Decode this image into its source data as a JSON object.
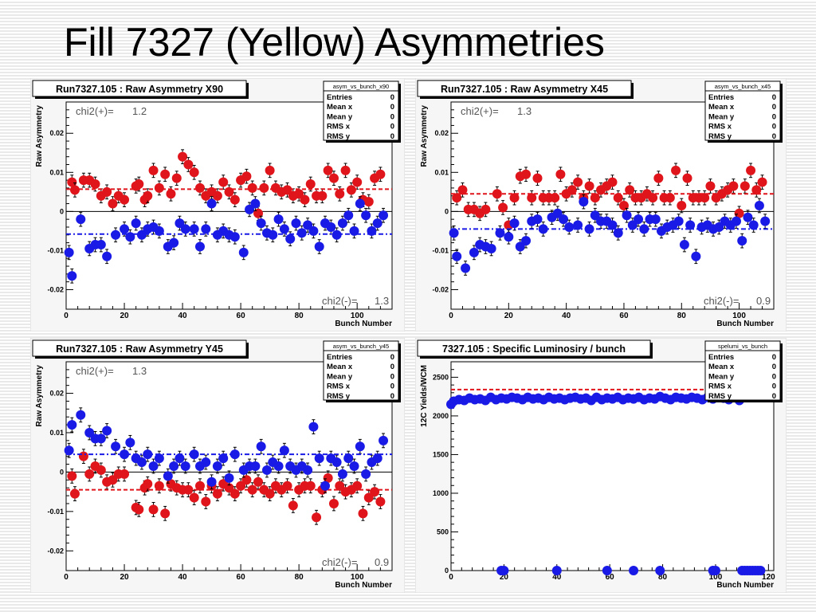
{
  "page": {
    "title": "Fill 7327 (Yellow) Asymmetries"
  },
  "colors": {
    "red": "#e0151b",
    "blue": "#1a1ae6",
    "frame": "#000000",
    "panel_bg": "#f6f6f6"
  },
  "chart_data": [
    {
      "type": "scatter",
      "title": "Run7327.105 : Raw Asymmetry X90",
      "stats_title": "asym_vs_bunch_x90",
      "stats": [
        [
          "Entries",
          "0"
        ],
        [
          "Mean x",
          "0"
        ],
        [
          "Mean y",
          "0"
        ],
        [
          "RMS x",
          "0"
        ],
        [
          "RMS y",
          "0"
        ]
      ],
      "xlabel": "Bunch Number",
      "ylabel": "Raw Asymmetry",
      "xlim": [
        0,
        112
      ],
      "ylim": [
        -0.025,
        0.028
      ],
      "xticks": [
        0,
        20,
        40,
        60,
        80,
        100
      ],
      "yticks": [
        -0.02,
        -0.01,
        0,
        0.01,
        0.02
      ],
      "ytick_labels": [
        "-0.02",
        "-0.01",
        "0",
        "0.01",
        "0.02"
      ],
      "chi2_plus_label": "chi2(+)=",
      "chi2_plus": "1.2",
      "chi2_minus_label": "chi2(-)=",
      "chi2_minus": "1.3",
      "series": [
        {
          "color": "red",
          "fit": 0.0057,
          "err": 0.0018,
          "x": [
            2,
            3,
            6,
            8,
            10,
            12,
            14,
            16,
            18,
            20,
            24,
            25,
            27,
            28,
            30,
            32,
            34,
            36,
            38,
            40,
            42,
            44,
            46,
            48,
            50,
            52,
            54,
            56,
            58,
            60,
            62,
            64,
            66,
            68,
            70,
            72,
            74,
            76,
            78,
            80,
            82,
            84,
            86,
            88,
            90,
            92,
            94,
            96,
            98,
            100,
            102,
            104,
            106,
            108
          ],
          "y": [
            0.0075,
            0.0055,
            0.008,
            0.008,
            0.007,
            0.004,
            0.005,
            0.002,
            0.004,
            0.003,
            0.0065,
            0.007,
            0.003,
            0.004,
            0.0105,
            0.006,
            0.0095,
            0.0045,
            0.0085,
            0.014,
            0.012,
            0.01,
            0.006,
            0.004,
            0.005,
            0.004,
            0.0075,
            0.005,
            0.003,
            0.008,
            0.009,
            0.006,
            -0.0005,
            0.006,
            0.0105,
            0.006,
            0.005,
            0.0055,
            0.004,
            0.0045,
            0.003,
            0.007,
            0.004,
            0.004,
            0.0105,
            0.0085,
            0.0045,
            0.0105,
            0.0055,
            0.0075,
            0.003,
            0.0025,
            0.0085,
            0.0095
          ]
        },
        {
          "color": "blue",
          "fit": -0.0058,
          "err": 0.0018,
          "x": [
            1,
            2,
            5,
            8,
            10,
            12,
            14,
            17,
            20,
            22,
            24,
            26,
            28,
            30,
            32,
            35,
            37,
            39,
            41,
            44,
            46,
            48,
            50,
            52,
            54,
            56,
            58,
            61,
            63,
            65,
            67,
            69,
            71,
            73,
            75,
            77,
            79,
            81,
            83,
            85,
            87,
            89,
            91,
            93,
            95,
            97,
            99,
            101,
            103,
            105,
            107,
            109
          ],
          "y": [
            -0.0105,
            -0.0165,
            -0.002,
            -0.0095,
            -0.0085,
            -0.0085,
            -0.0115,
            -0.006,
            -0.0045,
            -0.0065,
            -0.003,
            -0.006,
            -0.0045,
            -0.004,
            -0.005,
            -0.009,
            -0.008,
            -0.003,
            -0.0045,
            -0.0045,
            -0.009,
            -0.0045,
            0.002,
            -0.006,
            -0.005,
            -0.006,
            -0.0065,
            -0.0105,
            0.0005,
            0.002,
            -0.003,
            -0.0055,
            -0.006,
            -0.002,
            -0.0045,
            -0.007,
            -0.003,
            -0.0055,
            -0.0035,
            -0.005,
            -0.009,
            -0.003,
            -0.004,
            -0.006,
            -0.003,
            -0.001,
            -0.005,
            0.002,
            -0.001,
            -0.005,
            -0.003,
            -0.001
          ]
        }
      ]
    },
    {
      "type": "scatter",
      "title": "Run7327.105 : Raw Asymmetry X45",
      "stats_title": "asym_vs_bunch_x45",
      "stats": [
        [
          "Entries",
          "0"
        ],
        [
          "Mean x",
          "0"
        ],
        [
          "Mean y",
          "0"
        ],
        [
          "RMS x",
          "0"
        ],
        [
          "RMS y",
          "0"
        ]
      ],
      "xlabel": "Bunch Number",
      "ylabel": "Raw Asymmetry",
      "xlim": [
        0,
        112
      ],
      "ylim": [
        -0.025,
        0.028
      ],
      "xticks": [
        0,
        20,
        40,
        60,
        80,
        100
      ],
      "yticks": [
        -0.02,
        -0.01,
        0,
        0.01,
        0.02
      ],
      "ytick_labels": [
        "-0.02",
        "-0.01",
        "0",
        "0.01",
        "0.02"
      ],
      "chi2_plus_label": "chi2(+)=",
      "chi2_plus": "1.3",
      "chi2_minus_label": "chi2(-)=",
      "chi2_minus": "0.9",
      "series": [
        {
          "color": "red",
          "fit": 0.0045,
          "err": 0.0018,
          "x": [
            2,
            4,
            6,
            8,
            10,
            12,
            16,
            18,
            20,
            22,
            24,
            26,
            28,
            30,
            32,
            34,
            36,
            38,
            40,
            42,
            44,
            46,
            48,
            50,
            52,
            54,
            56,
            58,
            60,
            62,
            64,
            66,
            68,
            70,
            72,
            74,
            76,
            78,
            80,
            82,
            84,
            86,
            88,
            90,
            92,
            94,
            96,
            98,
            100,
            102,
            104,
            106,
            108
          ],
          "y": [
            0.0035,
            0.0055,
            0.0005,
            0.0005,
            -0.0005,
            0.0005,
            0.0045,
            0.001,
            -0.0035,
            0.0035,
            0.009,
            0.0095,
            0.0035,
            0.0085,
            0.0035,
            0.0035,
            0.0035,
            0.0095,
            0.0045,
            0.0055,
            0.0075,
            0.0035,
            0.0065,
            0.0035,
            0.0055,
            0.0065,
            0.0075,
            0.0035,
            0.0015,
            0.0055,
            0.0035,
            0.0035,
            0.0045,
            0.0035,
            0.0085,
            0.0035,
            0.0035,
            0.0105,
            0.0015,
            0.0085,
            0.0035,
            0.0035,
            0.0035,
            0.0065,
            0.0035,
            0.0045,
            0.0055,
            0.0065,
            -0.0005,
            0.0065,
            0.0105,
            0.0055,
            0.0075
          ]
        },
        {
          "color": "blue",
          "fit": -0.0045,
          "err": 0.0018,
          "x": [
            1,
            2,
            5,
            8,
            10,
            12,
            14,
            17,
            20,
            22,
            24,
            26,
            28,
            30,
            32,
            35,
            37,
            39,
            41,
            44,
            46,
            48,
            50,
            52,
            54,
            56,
            58,
            61,
            63,
            65,
            67,
            69,
            71,
            73,
            75,
            77,
            79,
            81,
            83,
            85,
            87,
            89,
            91,
            93,
            95,
            97,
            99,
            101,
            103,
            105,
            107,
            109
          ],
          "y": [
            -0.0055,
            -0.0115,
            -0.0145,
            -0.0105,
            -0.0085,
            -0.009,
            -0.0095,
            -0.0055,
            -0.0065,
            -0.003,
            -0.009,
            -0.0075,
            -0.0025,
            -0.002,
            -0.0045,
            -0.0015,
            -0.0005,
            -0.002,
            -0.004,
            -0.0035,
            0.0025,
            -0.0045,
            -0.001,
            -0.0025,
            -0.0025,
            -0.0035,
            -0.0055,
            -0.001,
            -0.0035,
            -0.002,
            -0.0045,
            -0.002,
            -0.002,
            -0.005,
            -0.004,
            -0.0035,
            -0.0025,
            -0.0085,
            -0.0035,
            -0.0115,
            -0.004,
            -0.0035,
            -0.0045,
            -0.004,
            -0.0025,
            -0.0035,
            -0.0025,
            -0.0075,
            -0.0015,
            -0.0035,
            0.0015,
            -0.0025
          ]
        }
      ]
    },
    {
      "type": "scatter",
      "title": "Run7327.105 : Raw Asymmetry Y45",
      "stats_title": "asym_vs_bunch_y45",
      "stats": [
        [
          "Entries",
          "0"
        ],
        [
          "Mean x",
          "0"
        ],
        [
          "Mean y",
          "0"
        ],
        [
          "RMS x",
          "0"
        ],
        [
          "RMS y",
          "0"
        ]
      ],
      "xlabel": "Bunch Number",
      "ylabel": "Raw Asymmetry",
      "xlim": [
        0,
        112
      ],
      "ylim": [
        -0.025,
        0.028
      ],
      "xticks": [
        0,
        20,
        40,
        60,
        80,
        100
      ],
      "yticks": [
        -0.02,
        -0.01,
        0,
        0.01,
        0.02
      ],
      "ytick_labels": [
        "-0.02",
        "-0.01",
        "0",
        "0.01",
        "0.02"
      ],
      "chi2_plus_label": "chi2(+)=",
      "chi2_plus": "1.3",
      "chi2_minus_label": "chi2(-)=",
      "chi2_minus": "0.9",
      "series": [
        {
          "color": "red",
          "fit": -0.0045,
          "err": 0.0018,
          "x": [
            2,
            3,
            6,
            8,
            10,
            12,
            14,
            16,
            18,
            20,
            24,
            25,
            27,
            28,
            30,
            32,
            34,
            36,
            38,
            40,
            42,
            44,
            46,
            48,
            50,
            52,
            54,
            56,
            58,
            60,
            62,
            64,
            66,
            68,
            70,
            72,
            74,
            76,
            78,
            80,
            82,
            84,
            86,
            88,
            90,
            92,
            94,
            96,
            98,
            100,
            102,
            104,
            106,
            108
          ],
          "y": [
            -0.001,
            -0.0055,
            0.004,
            -0.0005,
            0.0015,
            0.0005,
            -0.0025,
            -0.002,
            -0.0005,
            -0.0005,
            -0.009,
            -0.0095,
            -0.004,
            -0.003,
            -0.0095,
            -0.0035,
            -0.0105,
            -0.003,
            -0.004,
            -0.0045,
            -0.0045,
            -0.0065,
            -0.0035,
            -0.0075,
            -0.0035,
            -0.0055,
            -0.003,
            -0.004,
            -0.0055,
            -0.0035,
            -0.002,
            -0.0045,
            -0.0025,
            -0.0045,
            -0.0055,
            -0.0035,
            -0.0045,
            -0.0035,
            -0.0085,
            -0.0045,
            -0.0035,
            -0.0035,
            -0.0115,
            -0.0045,
            -0.0015,
            -0.008,
            -0.0035,
            -0.005,
            -0.0045,
            -0.0035,
            -0.0105,
            -0.0065,
            -0.005,
            -0.0075
          ]
        },
        {
          "color": "blue",
          "fit": 0.0045,
          "err": 0.0018,
          "x": [
            1,
            2,
            5,
            8,
            10,
            12,
            14,
            17,
            20,
            22,
            24,
            26,
            28,
            30,
            32,
            35,
            37,
            39,
            41,
            44,
            46,
            48,
            50,
            52,
            54,
            56,
            58,
            61,
            63,
            65,
            67,
            69,
            71,
            73,
            75,
            77,
            79,
            81,
            83,
            85,
            87,
            89,
            91,
            93,
            95,
            97,
            99,
            101,
            103,
            105,
            107,
            109
          ],
          "y": [
            0.0055,
            0.012,
            0.0145,
            0.01,
            0.0085,
            0.0085,
            0.0105,
            0.0065,
            0.0045,
            0.0075,
            0.0035,
            0.0025,
            0.0045,
            0.0015,
            0.0035,
            -0.001,
            0.0015,
            0.0035,
            0.0015,
            0.0045,
            0.0015,
            0.0025,
            -0.0025,
            0.0015,
            0.0035,
            -0.0015,
            0.0045,
            0.0005,
            0.0015,
            0.0015,
            0.0065,
            0.0005,
            0.0025,
            0.0015,
            0.0055,
            0.0015,
            0.0005,
            0.0015,
            0.0005,
            0.0115,
            0.0035,
            -0.0035,
            0.0035,
            0.0025,
            -0.0005,
            0.0035,
            0.0015,
            0.0065,
            -0.0005,
            0.0025,
            0.0035,
            0.008
          ]
        }
      ]
    },
    {
      "type": "scatter",
      "title": "7327.105 : Specific Luminosiry / bunch",
      "stats_title": "spelumi_vs_bunch",
      "stats": [
        [
          "Entries",
          "0"
        ],
        [
          "Mean x",
          "0"
        ],
        [
          "Mean y",
          "0"
        ],
        [
          "RMS x",
          "0"
        ],
        [
          "RMS y",
          "0"
        ]
      ],
      "xlabel": "Bunch Number",
      "ylabel": "12C Yields/WCM",
      "xlim": [
        0,
        122
      ],
      "ylim": [
        0,
        2700
      ],
      "xticks": [
        0,
        20,
        40,
        60,
        80,
        100,
        120
      ],
      "yticks": [
        0,
        500,
        1000,
        1500,
        2000,
        2500
      ],
      "ytick_labels": [
        "0",
        "500",
        "1000",
        "1500",
        "2000",
        "2500"
      ],
      "ref_line": 2200,
      "chi2_plus_label": "",
      "chi2_plus": "",
      "chi2_minus_label": "",
      "chi2_minus": "",
      "series": [
        {
          "color": "blue",
          "fit_color": "red",
          "fit": 2340,
          "err": 25,
          "x": [
            0,
            1,
            3,
            5,
            7,
            9,
            11,
            13,
            15,
            17,
            19,
            21,
            23,
            25,
            27,
            29,
            31,
            33,
            35,
            37,
            39,
            41,
            43,
            45,
            47,
            49,
            51,
            53,
            55,
            57,
            59,
            61,
            63,
            65,
            67,
            69,
            71,
            73,
            75,
            77,
            79,
            81,
            83,
            85,
            87,
            89,
            91,
            93,
            95,
            97,
            99,
            101,
            103,
            105,
            107,
            109,
            111,
            19,
            20,
            40,
            59,
            69,
            79,
            99,
            100,
            110,
            111,
            112,
            113,
            114,
            115,
            116,
            117
          ],
          "y": [
            2150,
            2190,
            2210,
            2200,
            2230,
            2210,
            2220,
            2200,
            2240,
            2210,
            2230,
            2220,
            2240,
            2230,
            2210,
            2240,
            2220,
            2230,
            2210,
            2240,
            2220,
            2230,
            2210,
            2230,
            2240,
            2220,
            2230,
            2200,
            2240,
            2210,
            2230,
            2220,
            2240,
            2210,
            2230,
            2220,
            2240,
            2210,
            2230,
            2220,
            2250,
            2230,
            2210,
            2240,
            2230,
            2220,
            2240,
            2230,
            2210,
            2240,
            2220,
            2240,
            2230,
            2210,
            2240,
            2200,
            2260,
            0,
            0,
            0,
            0,
            0,
            0,
            0,
            0,
            0,
            0,
            0,
            0,
            0,
            0,
            0,
            0
          ]
        }
      ]
    }
  ]
}
